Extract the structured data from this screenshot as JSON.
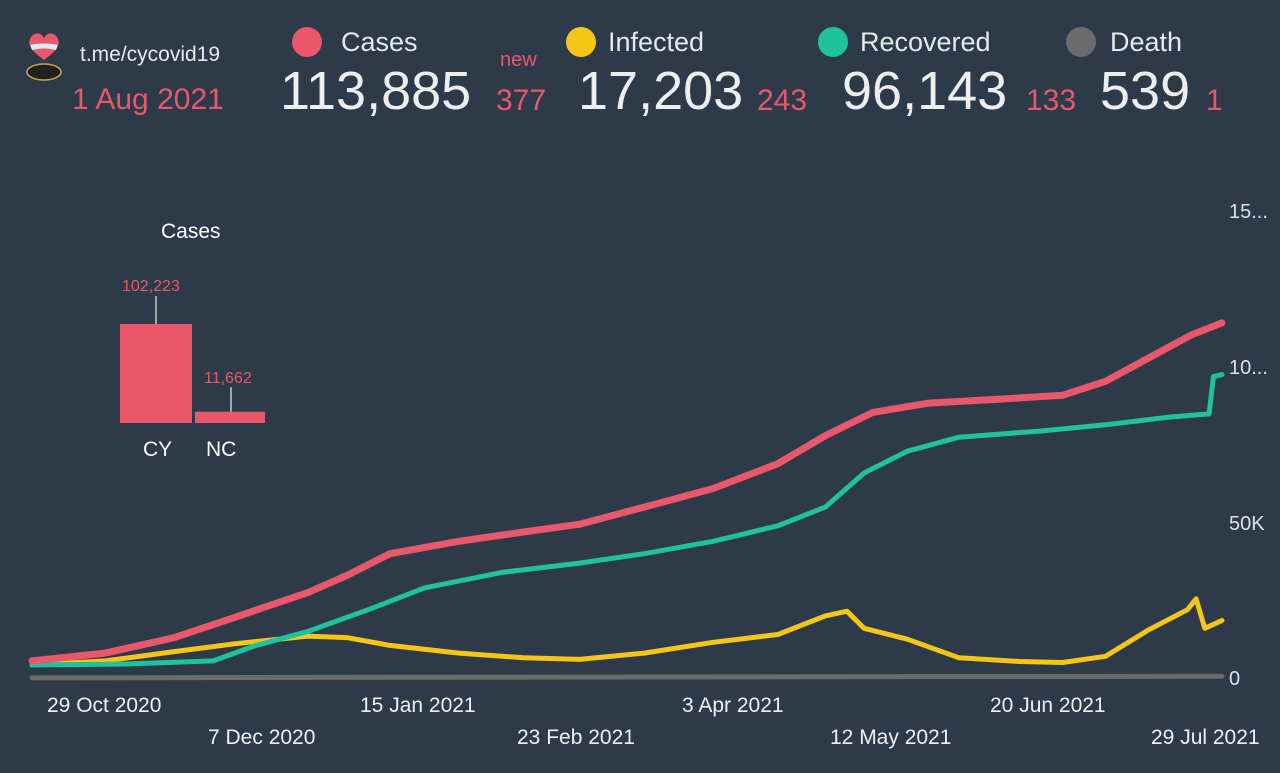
{
  "header": {
    "channel": "t.me/cycovid19",
    "date": "1 Aug 2021",
    "new_label": "new"
  },
  "stats": [
    {
      "label": "Cases",
      "value": "113,885",
      "delta": "377",
      "color": "#e9576a"
    },
    {
      "label": "Infected",
      "value": "17,203",
      "delta": "243",
      "color": "#f5c518"
    },
    {
      "label": "Recovered",
      "value": "96,143",
      "delta": "133",
      "color": "#1fc19f"
    },
    {
      "label": "Death",
      "value": "539",
      "delta": "1",
      "color": "#6b6b6b"
    }
  ],
  "chart_data": [
    {
      "type": "bar",
      "title": "Cases",
      "categories": [
        "CY",
        "NC"
      ],
      "values": [
        102223,
        11662
      ],
      "value_labels": [
        "102,223",
        "11,662"
      ],
      "color": "#e9576a"
    },
    {
      "type": "line",
      "x_ticks": [
        "29 Oct 2020",
        "7 Dec 2020",
        "15 Jan 2021",
        "23 Feb 2021",
        "3 Apr 2021",
        "12 May 2021",
        "20 Jun 2021",
        "29 Jul 2021"
      ],
      "x_range": [
        "2020-10-29",
        "2021-08-01"
      ],
      "y_ticks": [
        "0",
        "50K",
        "10...",
        "15..."
      ],
      "y_tick_values": [
        0,
        50000,
        100000,
        150000
      ],
      "ylim": [
        0,
        150000
      ],
      "grid": false,
      "series": [
        {
          "name": "Cases",
          "color": "#e9576a",
          "points": [
            [
              "2020-10-29",
              5500
            ],
            [
              "2020-11-15",
              8000
            ],
            [
              "2020-12-01",
              13000
            ],
            [
              "2020-12-15",
              19500
            ],
            [
              "2021-01-01",
              27500
            ],
            [
              "2021-01-10",
              33000
            ],
            [
              "2021-01-20",
              40000
            ],
            [
              "2021-02-05",
              44000
            ],
            [
              "2021-02-20",
              47000
            ],
            [
              "2021-03-05",
              49500
            ],
            [
              "2021-03-20",
              55000
            ],
            [
              "2021-04-05",
              61000
            ],
            [
              "2021-04-20",
              69000
            ],
            [
              "2021-05-01",
              78000
            ],
            [
              "2021-05-12",
              85500
            ],
            [
              "2021-05-25",
              88500
            ],
            [
              "2021-06-10",
              89700
            ],
            [
              "2021-06-25",
              91000
            ],
            [
              "2021-07-05",
              95500
            ],
            [
              "2021-07-15",
              103000
            ],
            [
              "2021-07-25",
              110500
            ],
            [
              "2021-08-01",
              114300
            ]
          ]
        },
        {
          "name": "Recovered",
          "color": "#1fc19f",
          "points": [
            [
              "2020-10-29",
              4200
            ],
            [
              "2020-11-20",
              4500
            ],
            [
              "2020-12-10",
              5500
            ],
            [
              "2020-12-20",
              10500
            ],
            [
              "2021-01-01",
              15000
            ],
            [
              "2021-01-15",
              22000
            ],
            [
              "2021-01-28",
              29000
            ],
            [
              "2021-02-15",
              34000
            ],
            [
              "2021-03-05",
              37000
            ],
            [
              "2021-03-20",
              40000
            ],
            [
              "2021-04-05",
              44000
            ],
            [
              "2021-04-20",
              49000
            ],
            [
              "2021-05-01",
              55000
            ],
            [
              "2021-05-10",
              66000
            ],
            [
              "2021-05-20",
              73000
            ],
            [
              "2021-06-01",
              77500
            ],
            [
              "2021-06-20",
              79500
            ],
            [
              "2021-07-05",
              81500
            ],
            [
              "2021-07-20",
              84000
            ],
            [
              "2021-07-29",
              85000
            ],
            [
              "2021-07-30",
              97000
            ],
            [
              "2021-08-01",
              97700
            ]
          ]
        },
        {
          "name": "Infected",
          "color": "#f5c518",
          "points": [
            [
              "2020-10-29",
              4200
            ],
            [
              "2020-11-15",
              5500
            ],
            [
              "2020-12-01",
              8500
            ],
            [
              "2020-12-15",
              11000
            ],
            [
              "2021-01-01",
              13500
            ],
            [
              "2021-01-10",
              13000
            ],
            [
              "2021-01-20",
              10500
            ],
            [
              "2021-02-05",
              8000
            ],
            [
              "2021-02-20",
              6500
            ],
            [
              "2021-03-05",
              6000
            ],
            [
              "2021-03-20",
              8000
            ],
            [
              "2021-04-05",
              11500
            ],
            [
              "2021-04-20",
              14000
            ],
            [
              "2021-05-01",
              20000
            ],
            [
              "2021-05-06",
              21500
            ],
            [
              "2021-05-10",
              16000
            ],
            [
              "2021-05-20",
              12500
            ],
            [
              "2021-06-01",
              6500
            ],
            [
              "2021-06-15",
              5300
            ],
            [
              "2021-06-25",
              5000
            ],
            [
              "2021-07-05",
              7000
            ],
            [
              "2021-07-15",
              15500
            ],
            [
              "2021-07-24",
              22000
            ],
            [
              "2021-07-26",
              25500
            ],
            [
              "2021-07-28",
              16000
            ],
            [
              "2021-08-01",
              18500
            ]
          ]
        },
        {
          "name": "Death",
          "color": "#6b6b6b",
          "points": [
            [
              "2020-10-29",
              30
            ],
            [
              "2021-02-01",
              250
            ],
            [
              "2021-08-01",
              539
            ]
          ]
        }
      ]
    }
  ]
}
